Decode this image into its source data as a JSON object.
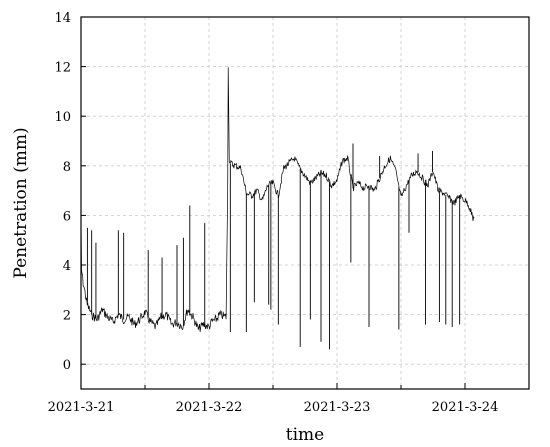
{
  "chart_data": {
    "type": "line",
    "xlabel": "time",
    "ylabel": "Penetration (mm)",
    "xlim": [
      "2021-03-21 00:00",
      "2021-03-24 12:00"
    ],
    "ylim": [
      -1,
      14
    ],
    "yticks": [
      0,
      2,
      4,
      6,
      8,
      10,
      12,
      14
    ],
    "xticks": [
      {
        "label": "2021-3-21",
        "time": "2021-03-21 00:00"
      },
      {
        "label": "2021-3-22",
        "time": "2021-03-22 00:00"
      },
      {
        "label": "2021-3-23",
        "time": "2021-03-23 00:00"
      },
      {
        "label": "2021-3-24",
        "time": "2021-03-24 00:00"
      }
    ],
    "grid": true,
    "series": [
      {
        "color": "#000000",
        "points": [
          [
            "2021-03-21 00:00",
            6.8
          ],
          [
            "2021-03-21 00:02",
            5.2
          ],
          [
            "2021-03-21 00:06",
            3.8
          ],
          [
            "2021-03-21 00:24",
            3.3
          ],
          [
            "2021-03-21 01:10",
            2.4
          ],
          [
            "2021-03-21 02:00",
            2.0
          ],
          [
            "2021-03-21 03:00",
            1.8
          ],
          [
            "2021-03-21 04:00",
            2.2
          ],
          [
            "2021-03-21 05:00",
            1.9
          ],
          [
            "2021-03-21 06:00",
            1.7
          ],
          [
            "2021-03-21 07:00",
            2.0
          ],
          [
            "2021-03-21 08:00",
            1.8
          ],
          [
            "2021-03-21 09:00",
            1.9
          ],
          [
            "2021-03-21 10:00",
            1.6
          ],
          [
            "2021-03-21 11:00",
            1.8
          ],
          [
            "2021-03-21 12:00",
            2.1
          ],
          [
            "2021-03-21 13:00",
            1.7
          ],
          [
            "2021-03-21 14:00",
            1.5
          ],
          [
            "2021-03-21 15:00",
            1.9
          ],
          [
            "2021-03-21 16:00",
            2.0
          ],
          [
            "2021-03-21 17:00",
            1.6
          ],
          [
            "2021-03-21 18:00",
            1.7
          ],
          [
            "2021-03-21 19:00",
            1.5
          ],
          [
            "2021-03-21 20:00",
            2.2
          ],
          [
            "2021-03-21 21:00",
            1.9
          ],
          [
            "2021-03-21 22:00",
            1.4
          ],
          [
            "2021-03-21 23:00",
            1.6
          ],
          [
            "2021-03-22 00:00",
            1.5
          ],
          [
            "2021-03-22 00:30",
            1.7
          ],
          [
            "2021-03-22 01:12",
            1.8
          ],
          [
            "2021-03-22 01:20",
            1.8
          ],
          [
            "2021-03-22 02:00",
            2.0
          ],
          [
            "2021-03-22 03:12",
            1.9
          ],
          [
            "2021-03-22 03:30",
            6.8
          ],
          [
            "2021-03-22 03:36",
            12.1
          ],
          [
            "2021-03-22 03:48",
            8.3
          ],
          [
            "2021-03-22 04:00",
            8.1
          ],
          [
            "2021-03-22 05:00",
            8.0
          ],
          [
            "2021-03-22 06:00",
            7.9
          ],
          [
            "2021-03-22 07:00",
            6.9
          ],
          [
            "2021-03-22 08:00",
            6.8
          ],
          [
            "2021-03-22 09:00",
            7.0
          ],
          [
            "2021-03-22 10:00",
            6.6
          ],
          [
            "2021-03-22 11:00",
            7.2
          ],
          [
            "2021-03-22 12:00",
            7.3
          ],
          [
            "2021-03-22 13:00",
            6.8
          ],
          [
            "2021-03-22 14:00",
            7.9
          ],
          [
            "2021-03-22 15:00",
            8.1
          ],
          [
            "2021-03-22 16:00",
            8.3
          ],
          [
            "2021-03-22 17:00",
            7.9
          ],
          [
            "2021-03-22 18:00",
            7.6
          ],
          [
            "2021-03-22 19:00",
            7.3
          ],
          [
            "2021-03-22 20:00",
            7.5
          ],
          [
            "2021-03-22 21:00",
            7.7
          ],
          [
            "2021-03-22 22:00",
            7.6
          ],
          [
            "2021-03-22 23:00",
            7.2
          ],
          [
            "2021-03-23 00:00",
            7.4
          ],
          [
            "2021-03-23 01:00",
            8.2
          ],
          [
            "2021-03-23 02:00",
            8.3
          ],
          [
            "2021-03-23 03:00",
            7.1
          ],
          [
            "2021-03-23 04:00",
            7.3
          ],
          [
            "2021-03-23 05:00",
            7.1
          ],
          [
            "2021-03-23 06:00",
            7.2
          ],
          [
            "2021-03-23 07:00",
            7.0
          ],
          [
            "2021-03-23 08:00",
            7.5
          ],
          [
            "2021-03-23 09:00",
            8.0
          ],
          [
            "2021-03-23 10:00",
            8.3
          ],
          [
            "2021-03-23 11:00",
            7.8
          ],
          [
            "2021-03-23 12:00",
            6.7
          ],
          [
            "2021-03-23 13:00",
            7.2
          ],
          [
            "2021-03-23 14:00",
            7.6
          ],
          [
            "2021-03-23 15:00",
            7.8
          ],
          [
            "2021-03-23 16:00",
            7.5
          ],
          [
            "2021-03-23 17:00",
            7.2
          ],
          [
            "2021-03-23 18:00",
            7.8
          ],
          [
            "2021-03-23 19:00",
            7.0
          ],
          [
            "2021-03-23 20:00",
            6.9
          ],
          [
            "2021-03-23 21:00",
            6.7
          ],
          [
            "2021-03-23 22:00",
            6.5
          ],
          [
            "2021-03-23 23:00",
            6.8
          ],
          [
            "2021-03-24 00:00",
            6.6
          ],
          [
            "2021-03-24 00:30",
            6.5
          ],
          [
            "2021-03-24 01:06",
            6.2
          ],
          [
            "2021-03-24 01:30",
            5.8
          ],
          [
            "2021-03-24 01:48",
            6.1
          ]
        ],
        "spikes": [
          [
            "2021-03-21 01:12",
            5.5
          ],
          [
            "2021-03-21 02:00",
            5.4
          ],
          [
            "2021-03-21 02:48",
            4.9
          ],
          [
            "2021-03-21 07:00",
            5.4
          ],
          [
            "2021-03-21 08:00",
            5.3
          ],
          [
            "2021-03-21 12:36",
            4.6
          ],
          [
            "2021-03-21 15:12",
            4.3
          ],
          [
            "2021-03-21 18:00",
            4.8
          ],
          [
            "2021-03-21 19:12",
            5.1
          ],
          [
            "2021-03-21 20:24",
            6.4
          ],
          [
            "2021-03-21 23:12",
            5.7
          ],
          [
            "2021-03-22 04:00",
            1.3
          ],
          [
            "2021-03-22 07:00",
            1.3
          ],
          [
            "2021-03-22 08:30",
            2.5
          ],
          [
            "2021-03-22 11:12",
            2.4
          ],
          [
            "2021-03-22 11:36",
            2.2
          ],
          [
            "2021-03-22 13:00",
            1.6
          ],
          [
            "2021-03-22 17:06",
            0.7
          ],
          [
            "2021-03-22 19:00",
            1.8
          ],
          [
            "2021-03-22 21:00",
            0.9
          ],
          [
            "2021-03-22 22:36",
            0.6
          ],
          [
            "2021-03-23 02:36",
            4.1
          ],
          [
            "2021-03-23 03:00",
            8.9
          ],
          [
            "2021-03-23 06:00",
            1.5
          ],
          [
            "2021-03-23 08:00",
            8.4
          ],
          [
            "2021-03-23 11:36",
            1.4
          ],
          [
            "2021-03-23 13:30",
            5.3
          ],
          [
            "2021-03-23 15:12",
            8.5
          ],
          [
            "2021-03-23 16:36",
            1.6
          ],
          [
            "2021-03-23 17:54",
            8.6
          ],
          [
            "2021-03-23 19:12",
            1.7
          ],
          [
            "2021-03-23 20:24",
            1.6
          ],
          [
            "2021-03-23 21:36",
            1.5
          ],
          [
            "2021-03-23 23:00",
            1.6
          ]
        ]
      }
    ]
  }
}
